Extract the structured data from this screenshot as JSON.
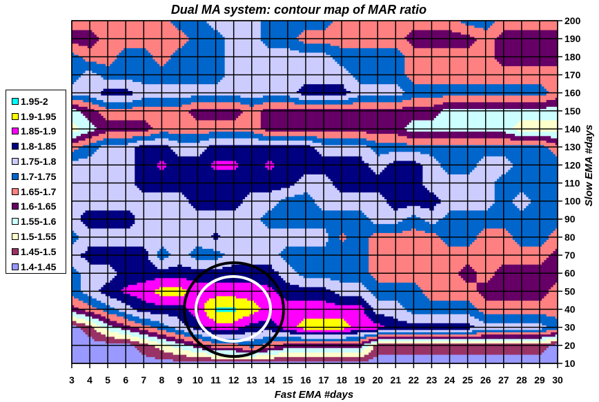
{
  "chart_data": {
    "type": "heatmap",
    "subtype": "filled-contour",
    "title": "Dual MA system: contour map of MAR ratio",
    "xlabel": "Fast EMA #days",
    "ylabel": "Slow EMA #days",
    "x": [
      3,
      4,
      5,
      6,
      7,
      8,
      9,
      10,
      11,
      12,
      13,
      14,
      15,
      16,
      17,
      18,
      19,
      20,
      21,
      22,
      23,
      24,
      25,
      26,
      27,
      28,
      29,
      30
    ],
    "y": [
      10,
      20,
      30,
      40,
      50,
      60,
      70,
      80,
      90,
      100,
      110,
      120,
      130,
      140,
      150,
      160,
      170,
      180,
      190,
      200
    ],
    "xlim": [
      3,
      30
    ],
    "ylim": [
      10,
      200
    ],
    "x_ticks": [
      "3",
      "4",
      "5",
      "6",
      "7",
      "8",
      "9",
      "10",
      "11",
      "12",
      "13",
      "14",
      "15",
      "16",
      "17",
      "18",
      "19",
      "20",
      "21",
      "22",
      "23",
      "24",
      "25",
      "26",
      "27",
      "28",
      "29",
      "30"
    ],
    "y_ticks": [
      "10",
      "20",
      "30",
      "40",
      "50",
      "60",
      "70",
      "80",
      "90",
      "100",
      "110",
      "120",
      "130",
      "140",
      "150",
      "160",
      "170",
      "180",
      "190",
      "200"
    ],
    "y_axis_side": "right",
    "grid": true,
    "legend_position": "left",
    "bands": [
      {
        "label": "1.95-2",
        "min": 1.95,
        "max": 2.0,
        "color": "#00FFFF"
      },
      {
        "label": "1.9-1.95",
        "min": 1.9,
        "max": 1.95,
        "color": "#FFFF00"
      },
      {
        "label": "1.85-1.9",
        "min": 1.85,
        "max": 1.9,
        "color": "#FF00FF"
      },
      {
        "label": "1.8-1.85",
        "min": 1.8,
        "max": 1.85,
        "color": "#000080"
      },
      {
        "label": "1.75-1.8",
        "min": 1.75,
        "max": 1.8,
        "color": "#CCCCFF"
      },
      {
        "label": "1.7-1.75",
        "min": 1.7,
        "max": 1.75,
        "color": "#0066CC"
      },
      {
        "label": "1.65-1.7",
        "min": 1.65,
        "max": 1.7,
        "color": "#FF8080"
      },
      {
        "label": "1.6-1.65",
        "min": 1.6,
        "max": 1.65,
        "color": "#660066"
      },
      {
        "label": "1.55-1.6",
        "min": 1.55,
        "max": 1.6,
        "color": "#CCFFFF"
      },
      {
        "label": "1.5-1.55",
        "min": 1.5,
        "max": 1.55,
        "color": "#FFFFCC"
      },
      {
        "label": "1.45-1.5",
        "min": 1.45,
        "max": 1.5,
        "color": "#993366"
      },
      {
        "label": "1.4-1.45",
        "min": 1.4,
        "max": 1.45,
        "color": "#9999FF"
      }
    ],
    "z": [
      [
        1.425,
        1.425,
        1.425,
        1.425,
        1.425,
        1.425,
        1.425,
        1.425,
        1.425,
        1.425,
        1.425,
        1.425,
        1.425,
        1.425,
        1.425,
        1.425,
        1.425,
        1.425,
        1.425,
        1.425,
        1.425,
        1.425,
        1.425,
        1.425,
        1.425,
        1.425,
        1.425,
        1.425
      ],
      [
        1.425,
        1.425,
        1.425,
        1.425,
        1.475,
        1.525,
        1.575,
        1.625,
        1.675,
        1.675,
        1.725,
        1.675,
        1.625,
        1.625,
        1.625,
        1.625,
        1.625,
        1.475,
        1.475,
        1.475,
        1.475,
        1.475,
        1.475,
        1.475,
        1.475,
        1.475,
        1.475,
        1.425
      ],
      [
        1.425,
        1.475,
        1.575,
        1.625,
        1.675,
        1.725,
        1.775,
        1.825,
        1.875,
        1.875,
        1.825,
        1.825,
        1.875,
        1.925,
        1.925,
        1.925,
        1.875,
        1.875,
        1.825,
        1.825,
        1.825,
        1.825,
        1.825,
        1.775,
        1.775,
        1.775,
        1.775,
        1.725
      ],
      [
        1.625,
        1.675,
        1.725,
        1.775,
        1.825,
        1.825,
        1.825,
        1.875,
        1.96,
        1.96,
        1.925,
        1.875,
        1.875,
        1.875,
        1.875,
        1.875,
        1.875,
        1.775,
        1.775,
        1.725,
        1.725,
        1.725,
        1.725,
        1.675,
        1.675,
        1.675,
        1.675,
        1.675
      ],
      [
        1.725,
        1.775,
        1.825,
        1.86,
        1.875,
        1.925,
        1.925,
        1.875,
        1.875,
        1.875,
        1.875,
        1.86,
        1.825,
        1.825,
        1.825,
        1.775,
        1.775,
        1.725,
        1.725,
        1.725,
        1.675,
        1.675,
        1.675,
        1.625,
        1.625,
        1.625,
        1.625,
        1.675
      ],
      [
        1.725,
        1.775,
        1.775,
        1.825,
        1.825,
        1.825,
        1.825,
        1.825,
        1.825,
        1.825,
        1.825,
        1.825,
        1.775,
        1.725,
        1.725,
        1.725,
        1.725,
        1.675,
        1.675,
        1.675,
        1.675,
        1.675,
        1.625,
        1.675,
        1.625,
        1.625,
        1.625,
        1.625
      ],
      [
        1.775,
        1.825,
        1.825,
        1.825,
        1.825,
        1.725,
        1.775,
        1.725,
        1.725,
        1.775,
        1.775,
        1.775,
        1.725,
        1.725,
        1.725,
        1.725,
        1.725,
        1.675,
        1.675,
        1.675,
        1.675,
        1.675,
        1.675,
        1.675,
        1.675,
        1.675,
        1.675,
        1.625
      ],
      [
        1.725,
        1.775,
        1.775,
        1.775,
        1.775,
        1.775,
        1.775,
        1.775,
        1.81,
        1.775,
        1.775,
        1.775,
        1.775,
        1.775,
        1.775,
        1.69,
        1.725,
        1.675,
        1.675,
        1.675,
        1.675,
        1.725,
        1.725,
        1.675,
        1.675,
        1.725,
        1.725,
        1.675
      ],
      [
        1.775,
        1.83,
        1.83,
        1.83,
        1.775,
        1.775,
        1.775,
        1.775,
        1.775,
        1.775,
        1.775,
        1.725,
        1.725,
        1.725,
        1.725,
        1.725,
        1.725,
        1.775,
        1.775,
        1.725,
        1.775,
        1.725,
        1.725,
        1.725,
        1.725,
        1.725,
        1.725,
        1.725
      ],
      [
        1.775,
        1.775,
        1.775,
        1.775,
        1.775,
        1.775,
        1.775,
        1.825,
        1.825,
        1.825,
        1.775,
        1.775,
        1.725,
        1.725,
        1.775,
        1.775,
        1.775,
        1.775,
        1.825,
        1.825,
        1.825,
        1.775,
        1.775,
        1.775,
        1.725,
        1.775,
        1.725,
        1.725
      ],
      [
        1.775,
        1.775,
        1.775,
        1.775,
        1.825,
        1.825,
        1.825,
        1.825,
        1.825,
        1.825,
        1.825,
        1.825,
        1.825,
        1.775,
        1.775,
        1.825,
        1.825,
        1.825,
        1.825,
        1.825,
        1.775,
        1.775,
        1.775,
        1.775,
        1.725,
        1.725,
        1.725,
        1.725
      ],
      [
        1.775,
        1.775,
        1.775,
        1.775,
        1.825,
        1.86,
        1.825,
        1.825,
        1.86,
        1.86,
        1.825,
        1.86,
        1.825,
        1.825,
        1.825,
        1.825,
        1.825,
        1.775,
        1.825,
        1.825,
        1.775,
        1.725,
        1.725,
        1.775,
        1.775,
        1.725,
        1.725,
        1.725
      ],
      [
        1.675,
        1.725,
        1.775,
        1.775,
        1.825,
        1.825,
        1.775,
        1.775,
        1.825,
        1.825,
        1.825,
        1.825,
        1.825,
        1.825,
        1.775,
        1.775,
        1.775,
        1.725,
        1.725,
        1.725,
        1.725,
        1.725,
        1.725,
        1.725,
        1.725,
        1.725,
        1.725,
        1.675
      ],
      [
        1.525,
        1.575,
        1.625,
        1.625,
        1.625,
        1.675,
        1.675,
        1.675,
        1.675,
        1.675,
        1.675,
        1.625,
        1.625,
        1.625,
        1.625,
        1.625,
        1.625,
        1.625,
        1.625,
        1.575,
        1.575,
        1.575,
        1.575,
        1.575,
        1.575,
        1.525,
        1.525,
        1.525
      ],
      [
        1.575,
        1.625,
        1.675,
        1.675,
        1.675,
        1.675,
        1.675,
        1.625,
        1.625,
        1.625,
        1.675,
        1.625,
        1.625,
        1.625,
        1.625,
        1.625,
        1.625,
        1.625,
        1.625,
        1.625,
        1.625,
        1.575,
        1.575,
        1.575,
        1.575,
        1.575,
        1.575,
        1.575
      ],
      [
        1.775,
        1.775,
        1.825,
        1.825,
        1.775,
        1.775,
        1.775,
        1.775,
        1.775,
        1.775,
        1.775,
        1.775,
        1.775,
        1.825,
        1.825,
        1.825,
        1.775,
        1.775,
        1.775,
        1.725,
        1.725,
        1.725,
        1.725,
        1.725,
        1.725,
        1.725,
        1.725,
        1.675
      ],
      [
        1.725,
        1.775,
        1.725,
        1.725,
        1.725,
        1.725,
        1.725,
        1.725,
        1.725,
        1.775,
        1.775,
        1.775,
        1.775,
        1.775,
        1.775,
        1.775,
        1.725,
        1.725,
        1.725,
        1.675,
        1.675,
        1.675,
        1.675,
        1.675,
        1.675,
        1.675,
        1.675,
        1.675
      ],
      [
        1.725,
        1.675,
        1.675,
        1.725,
        1.725,
        1.675,
        1.725,
        1.725,
        1.725,
        1.775,
        1.775,
        1.775,
        1.775,
        1.775,
        1.775,
        1.725,
        1.725,
        1.725,
        1.725,
        1.675,
        1.675,
        1.675,
        1.675,
        1.675,
        1.625,
        1.625,
        1.625,
        1.625
      ],
      [
        1.625,
        1.625,
        1.675,
        1.675,
        1.675,
        1.675,
        1.675,
        1.725,
        1.725,
        1.775,
        1.775,
        1.725,
        1.725,
        1.675,
        1.675,
        1.675,
        1.675,
        1.675,
        1.675,
        1.625,
        1.625,
        1.625,
        1.625,
        1.675,
        1.625,
        1.625,
        1.625,
        1.625
      ],
      [
        1.675,
        1.675,
        1.675,
        1.675,
        1.675,
        1.675,
        1.725,
        1.725,
        1.775,
        1.775,
        1.775,
        1.725,
        1.725,
        1.725,
        1.725,
        1.675,
        1.675,
        1.675,
        1.675,
        1.675,
        1.675,
        1.675,
        1.725,
        1.725,
        1.675,
        1.675,
        1.675,
        1.675
      ]
    ]
  }
}
